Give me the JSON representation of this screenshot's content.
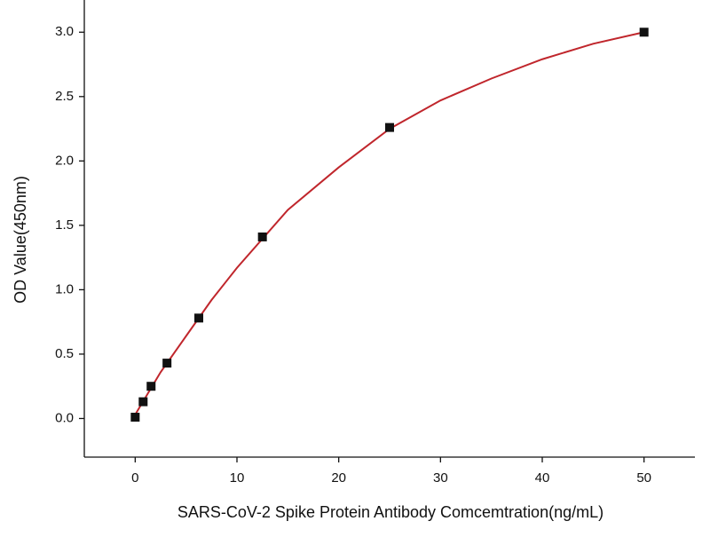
{
  "chart_data": {
    "type": "scatter",
    "x_label": "SARS-CoV-2 Spike Protein Antibody Comcemtration(ng/mL)",
    "y_label": "OD Value(450nm)",
    "xlim": [
      -5,
      55
    ],
    "xticks": [
      0,
      10,
      20,
      30,
      40,
      50
    ],
    "ylim": [
      -0.3,
      3.25
    ],
    "yticks": [
      {
        "value": 0,
        "label": "0.0"
      },
      0.5,
      {
        "value": 1,
        "label": "1.0"
      },
      1.5,
      {
        "value": 2,
        "label": "2.0"
      },
      2.5,
      {
        "value": 3,
        "label": "3.0"
      }
    ],
    "series": [
      {
        "kind": "points",
        "color": "#111111",
        "x": [
          0,
          0.78125,
          1.5625,
          3.125,
          6.25,
          12.5,
          25,
          50
        ],
        "values": [
          0.01,
          0.13,
          0.25,
          0.43,
          0.78,
          1.41,
          2.26,
          3.0
        ]
      },
      {
        "kind": "curve",
        "color": "#c0262c",
        "x": [
          0,
          2.5,
          5,
          7.5,
          10,
          15,
          20,
          25,
          30,
          35,
          40,
          45,
          50
        ],
        "values": [
          0.03,
          0.36,
          0.64,
          0.92,
          1.17,
          1.62,
          1.95,
          2.25,
          2.47,
          2.64,
          2.79,
          2.91,
          3.0
        ]
      }
    ]
  }
}
